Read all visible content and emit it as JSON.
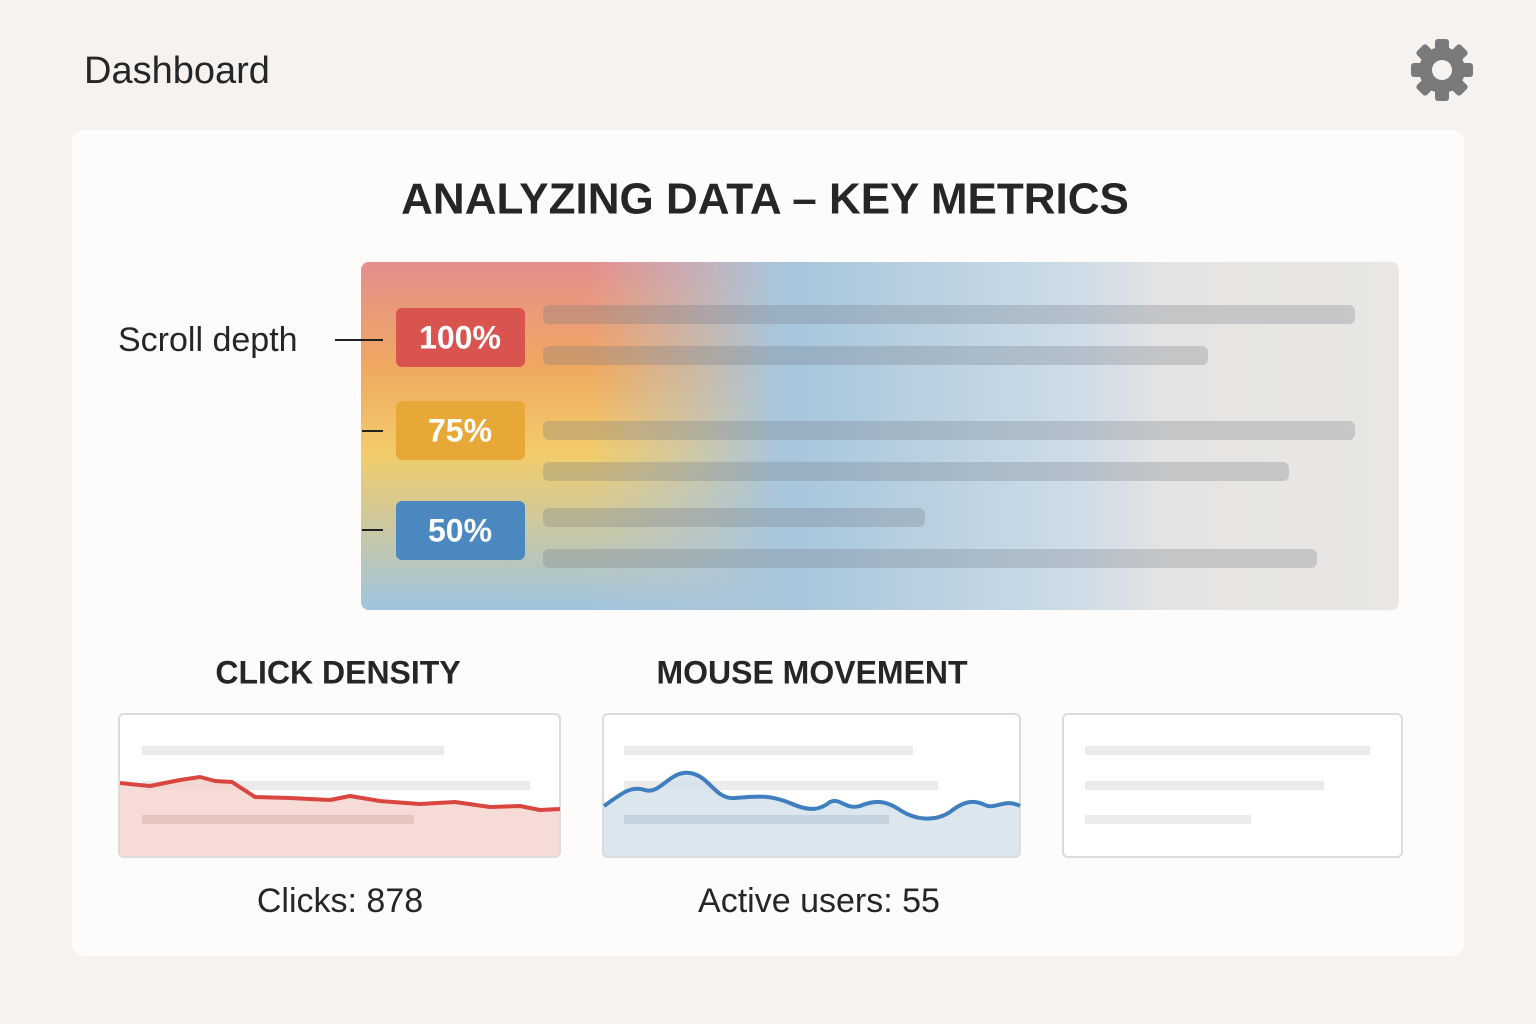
{
  "header": {
    "title": "Dashboard"
  },
  "main": {
    "title": "ANALYZING DATA – KEY METRICS",
    "scroll_depth": {
      "label": "Scroll depth",
      "levels": [
        "100%",
        "75%",
        "50%"
      ]
    },
    "panels": [
      {
        "title": "CLICK DENSITY",
        "stat": "Clicks: 878"
      },
      {
        "title": "MOUSE MOVEMENT",
        "stat": "Active users: 55"
      }
    ]
  }
}
